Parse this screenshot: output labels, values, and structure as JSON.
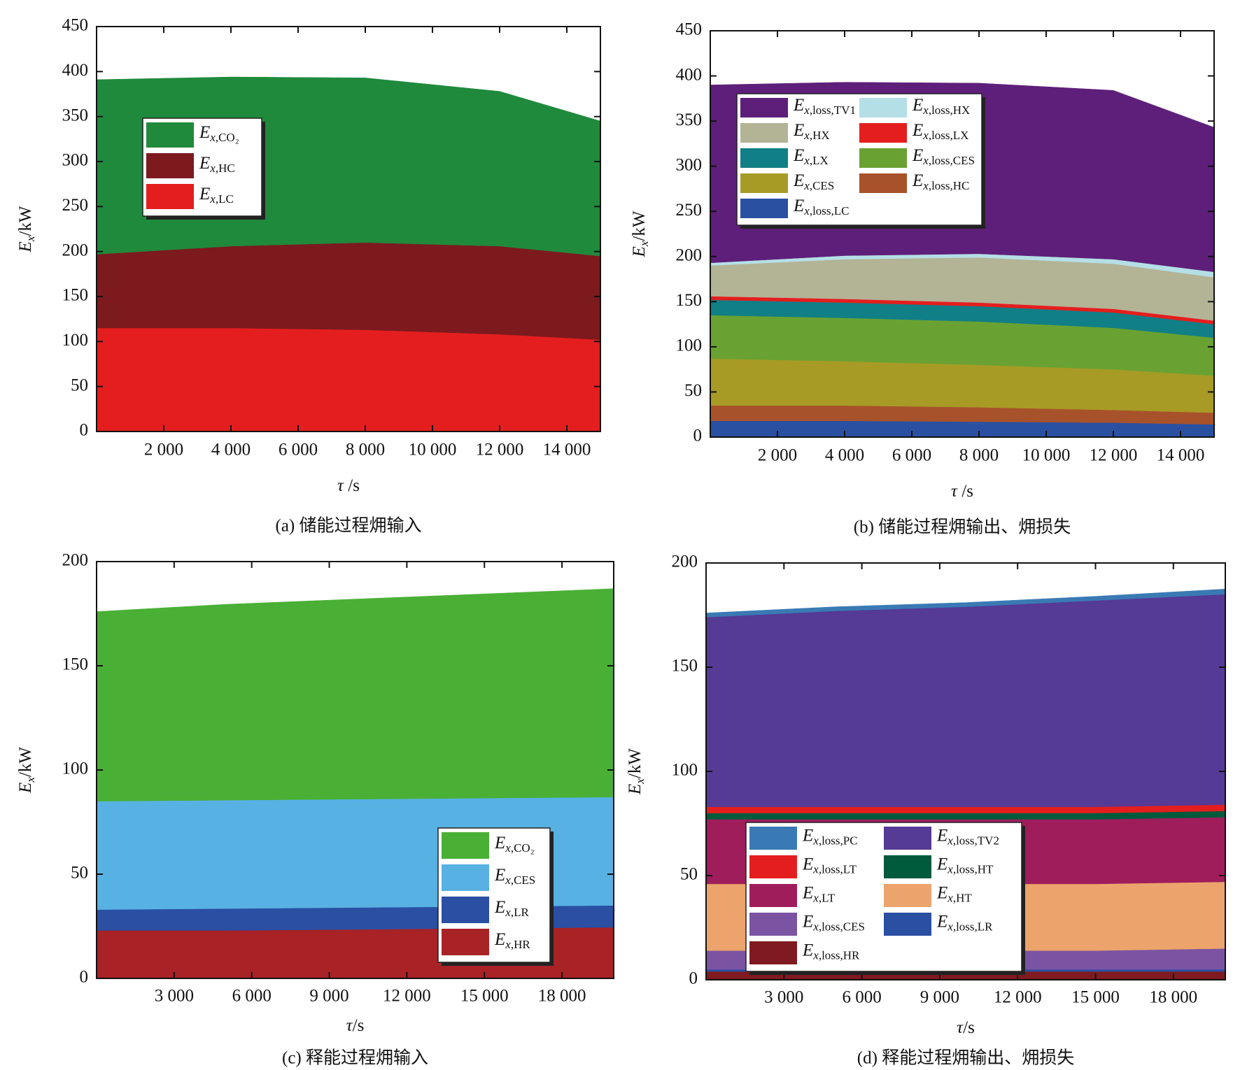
{
  "chart_data": [
    {
      "type": "area",
      "caption": "(a) 储能过程㶲输入",
      "ylabel": "Ex/kW",
      "xlabel": "τ /s",
      "x": [
        0,
        4000,
        8000,
        12000,
        15000
      ],
      "xlim": [
        0,
        15000
      ],
      "xticks": [
        {
          "value": 2000,
          "label": "2 000"
        },
        {
          "value": 4000,
          "label": "4 000"
        },
        {
          "value": 6000,
          "label": "6 000"
        },
        {
          "value": 8000,
          "label": "8 000"
        },
        {
          "value": 10000,
          "label": "10 000"
        },
        {
          "value": 12000,
          "label": "12 000"
        },
        {
          "value": 14000,
          "label": "14 000"
        }
      ],
      "ylim": [
        0,
        450
      ],
      "yticks": [
        0,
        50,
        100,
        150,
        200,
        250,
        300,
        350,
        400,
        450
      ],
      "legend_loc": "upper left",
      "legend_columns": 1,
      "series": [
        {
          "name": "Ex,CO₂",
          "color": "#1f8a3c",
          "values": [
            194,
            188,
            183,
            172,
            150
          ]
        },
        {
          "name": "Ex,HC",
          "color": "#7c1a1e",
          "values": [
            82,
            91,
            97,
            98,
            93
          ]
        },
        {
          "name": "Ex,LC",
          "color": "#e41e1e",
          "values": [
            115,
            115,
            113,
            108,
            102
          ]
        }
      ]
    },
    {
      "type": "area",
      "caption": "(b) 储能过程㶲输出、㶲损失",
      "ylabel": "Ex/kW",
      "xlabel": "τ /s",
      "x": [
        0,
        4000,
        8000,
        12000,
        15000
      ],
      "xlim": [
        0,
        15000
      ],
      "xticks": [
        {
          "value": 2000,
          "label": "2 000"
        },
        {
          "value": 4000,
          "label": "4 000"
        },
        {
          "value": 6000,
          "label": "6 000"
        },
        {
          "value": 8000,
          "label": "8 000"
        },
        {
          "value": 10000,
          "label": "10 000"
        },
        {
          "value": 12000,
          "label": "12 000"
        },
        {
          "value": 14000,
          "label": "14 000"
        }
      ],
      "ylim": [
        0,
        450
      ],
      "yticks": [
        0,
        50,
        100,
        150,
        200,
        250,
        300,
        350,
        400,
        450
      ],
      "legend_loc": "upper left",
      "legend_columns": 2,
      "series": [
        {
          "name": "Ex,loss,TV1",
          "color": "#5e1f7a",
          "values": [
            197,
            192,
            189,
            187,
            160
          ]
        },
        {
          "name": "Ex,loss,HX",
          "color": "#b5dfe6",
          "values": [
            3,
            4,
            4,
            5,
            6
          ]
        },
        {
          "name": "Ex,HX",
          "color": "#b3b396",
          "values": [
            34,
            44,
            50,
            50,
            48
          ]
        },
        {
          "name": "Ex,loss,LX",
          "color": "#e41e1e",
          "values": [
            4,
            4,
            4,
            4,
            4
          ]
        },
        {
          "name": "Ex,LX",
          "color": "#117f86",
          "values": [
            17,
            17,
            17,
            17,
            15
          ]
        },
        {
          "name": "Ex,loss,CES",
          "color": "#69a232",
          "values": [
            48,
            48,
            48,
            46,
            42
          ]
        },
        {
          "name": "Ex,CES",
          "color": "#a79b25",
          "values": [
            52,
            49,
            47,
            45,
            41
          ]
        },
        {
          "name": "Ex,loss,HC",
          "color": "#a8522b",
          "values": [
            17,
            17,
            16,
            14,
            13
          ]
        },
        {
          "name": "Ex,loss,LC",
          "color": "#2a50a2",
          "values": [
            18,
            18,
            17,
            16,
            14
          ]
        }
      ]
    },
    {
      "type": "area",
      "caption": "(c) 释能过程㶲输入",
      "ylabel": "Ex/kW",
      "xlabel": "τ/s",
      "x": [
        0,
        5000,
        10000,
        15000,
        20000
      ],
      "xlim": [
        0,
        20000
      ],
      "xticks": [
        {
          "value": 3000,
          "label": "3 000"
        },
        {
          "value": 6000,
          "label": "6 000"
        },
        {
          "value": 9000,
          "label": "9 000"
        },
        {
          "value": 12000,
          "label": "12 000"
        },
        {
          "value": 15000,
          "label": "15 000"
        },
        {
          "value": 18000,
          "label": "18 000"
        }
      ],
      "ylim": [
        0,
        200
      ],
      "yticks": [
        0,
        50,
        100,
        150,
        200
      ],
      "legend_loc": "lower right",
      "legend_columns": 1,
      "series": [
        {
          "name": "Ex,CO₂",
          "color": "#49b035",
          "values": [
            91,
            94,
            96,
            98,
            100
          ]
        },
        {
          "name": "Ex,CES",
          "color": "#58b1e3",
          "values": [
            52,
            52,
            52,
            52,
            52
          ]
        },
        {
          "name": "Ex,LR",
          "color": "#2a4fa3",
          "values": [
            10,
            10.5,
            10.5,
            10.5,
            10.5
          ]
        },
        {
          "name": "Ex,HR",
          "color": "#a82226",
          "values": [
            23,
            23,
            23.5,
            24,
            24.5
          ]
        }
      ]
    },
    {
      "type": "area",
      "caption": "(d) 释能过程㶲输出、㶲损失",
      "ylabel": "Ex/kW",
      "xlabel": "τ/s",
      "x": [
        0,
        5000,
        10000,
        15000,
        20000
      ],
      "xlim": [
        0,
        20000
      ],
      "xticks": [
        {
          "value": 3000,
          "label": "3 000"
        },
        {
          "value": 6000,
          "label": "6 000"
        },
        {
          "value": 9000,
          "label": "9 000"
        },
        {
          "value": 12000,
          "label": "12 000"
        },
        {
          "value": 15000,
          "label": "15 000"
        },
        {
          "value": 18000,
          "label": "18 000"
        }
      ],
      "ylim": [
        0,
        200
      ],
      "yticks": [
        0,
        50,
        100,
        150,
        200
      ],
      "legend_loc": "lower left",
      "legend_columns": 2,
      "series": [
        {
          "name": "Ex,loss,PC",
          "color": "#3a7ab4",
          "values": [
            2,
            2,
            2,
            2,
            2.5
          ]
        },
        {
          "name": "Ex,loss,TV2",
          "color": "#553a96",
          "values": [
            91,
            94,
            96,
            99,
            101
          ]
        },
        {
          "name": "Ex,loss,LT",
          "color": "#e41e1e",
          "values": [
            3,
            3,
            3,
            3,
            3
          ]
        },
        {
          "name": "Ex,loss,HT",
          "color": "#005a3c",
          "values": [
            3,
            3,
            3,
            3,
            3
          ]
        },
        {
          "name": "Ex,LT",
          "color": "#a01d5c",
          "values": [
            31,
            31,
            31,
            31,
            31
          ]
        },
        {
          "name": "Ex,HT",
          "color": "#eca46c",
          "values": [
            32,
            32,
            32,
            32,
            32
          ]
        },
        {
          "name": "Ex,loss,CES",
          "color": "#7b53a3",
          "values": [
            9,
            9,
            9,
            9,
            10
          ]
        },
        {
          "name": "Ex,loss,LR",
          "color": "#2a4fa3",
          "values": [
            1,
            1,
            1,
            1,
            1
          ]
        },
        {
          "name": "Ex,loss,HR",
          "color": "#7f1a20",
          "values": [
            4,
            4,
            4,
            4,
            4
          ]
        }
      ]
    }
  ]
}
